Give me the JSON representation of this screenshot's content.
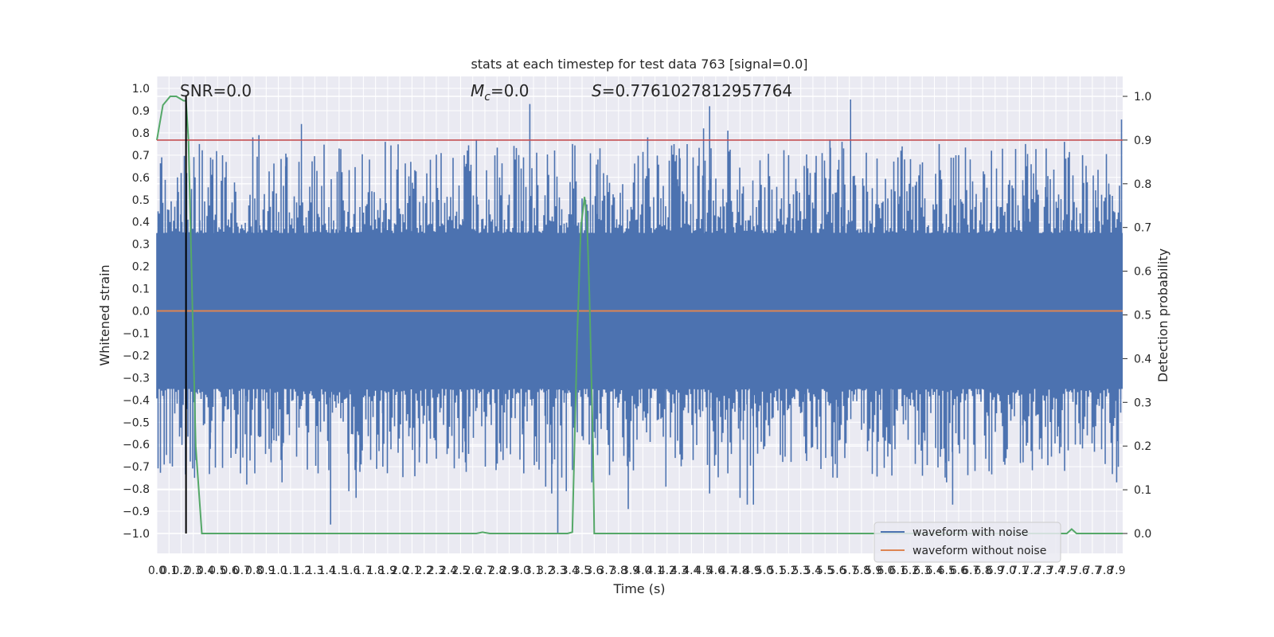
{
  "chart_data": {
    "type": "line",
    "title": "stats at each timestep for test data 763 [signal=0.0]",
    "xlabel": "Time (s)",
    "ylabel_left": "Whitened strain",
    "ylabel_right": "Detection probability",
    "xlim": [
      0.0,
      7.95
    ],
    "ylim_left": [
      -1.1,
      1.05
    ],
    "ylim_right": [
      -0.05,
      1.04
    ],
    "grid": true,
    "legend_position": "lower-right",
    "x_tick_step": 0.1,
    "x_ticks_last": 7.9,
    "left_y_ticks": [
      -1.0,
      -0.9,
      -0.8,
      -0.7,
      -0.6,
      -0.5,
      -0.4,
      -0.3,
      -0.2,
      -0.1,
      0.0,
      0.1,
      0.2,
      0.3,
      0.4,
      0.5,
      0.6,
      0.7,
      0.8,
      0.9,
      1.0
    ],
    "right_y_ticks": [
      0.0,
      0.1,
      0.2,
      0.3,
      0.4,
      0.5,
      0.6,
      0.7,
      0.8,
      0.9,
      1.0
    ],
    "annotations": {
      "snr": "SNR=0.0",
      "mc": "=0.0",
      "s": "=0.7761027812957764"
    },
    "threshold": 0.9,
    "marker_time": 0.24,
    "series": [
      {
        "name": "waveform with noise",
        "color": "#4c72b0",
        "axis": "left",
        "kind": "noise",
        "core_amplitude": 0.35,
        "spikes": [
          {
            "x": 0.04,
            "y": 0.69
          },
          {
            "x": 0.17,
            "y": 0.6
          },
          {
            "x": 0.2,
            "y": 0.62
          },
          {
            "x": 0.35,
            "y": 0.75
          },
          {
            "x": 0.46,
            "y": 0.68
          },
          {
            "x": 0.56,
            "y": 0.6
          },
          {
            "x": 0.79,
            "y": 0.78
          },
          {
            "x": 0.84,
            "y": 0.79
          },
          {
            "x": 1.06,
            "y": 0.65
          },
          {
            "x": 1.19,
            "y": 0.84
          },
          {
            "x": 1.5,
            "y": 0.73
          },
          {
            "x": 1.75,
            "y": 0.68
          },
          {
            "x": 1.88,
            "y": 0.76
          },
          {
            "x": 2.09,
            "y": 0.67
          },
          {
            "x": 2.53,
            "y": 0.7
          },
          {
            "x": 2.63,
            "y": 0.77
          },
          {
            "x": 2.95,
            "y": 0.68
          },
          {
            "x": 3.07,
            "y": 0.93
          },
          {
            "x": 3.43,
            "y": 0.55
          },
          {
            "x": 3.63,
            "y": 0.68
          },
          {
            "x": 4.04,
            "y": 0.78
          },
          {
            "x": 4.3,
            "y": 0.73
          },
          {
            "x": 4.5,
            "y": 0.82
          },
          {
            "x": 4.55,
            "y": 0.92
          },
          {
            "x": 4.7,
            "y": 0.81
          },
          {
            "x": 5.2,
            "y": 0.7
          },
          {
            "x": 5.54,
            "y": 0.77
          },
          {
            "x": 5.64,
            "y": 0.76
          },
          {
            "x": 5.71,
            "y": 0.95
          },
          {
            "x": 6.1,
            "y": 0.69
          },
          {
            "x": 6.6,
            "y": 0.7
          },
          {
            "x": 6.87,
            "y": 0.72
          },
          {
            "x": 7.15,
            "y": 0.75
          },
          {
            "x": 7.32,
            "y": 0.73
          },
          {
            "x": 7.47,
            "y": 0.76
          },
          {
            "x": 7.62,
            "y": 0.7
          },
          {
            "x": 7.94,
            "y": 0.86
          },
          {
            "x": 0.06,
            "y": -0.69
          },
          {
            "x": 0.31,
            "y": -0.75
          },
          {
            "x": 0.44,
            "y": -0.62
          },
          {
            "x": 0.61,
            "y": -0.66
          },
          {
            "x": 0.74,
            "y": -0.78
          },
          {
            "x": 0.94,
            "y": -0.68
          },
          {
            "x": 1.03,
            "y": -0.77
          },
          {
            "x": 1.43,
            "y": -0.96
          },
          {
            "x": 1.58,
            "y": -0.81
          },
          {
            "x": 1.64,
            "y": -0.84
          },
          {
            "x": 1.86,
            "y": -0.7
          },
          {
            "x": 2.16,
            "y": -0.68
          },
          {
            "x": 2.54,
            "y": -0.68
          },
          {
            "x": 2.85,
            "y": -0.67
          },
          {
            "x": 3.02,
            "y": -0.73
          },
          {
            "x": 3.2,
            "y": -0.79
          },
          {
            "x": 3.25,
            "y": -0.82
          },
          {
            "x": 3.3,
            "y": -1.0
          },
          {
            "x": 3.37,
            "y": -0.81
          },
          {
            "x": 3.58,
            "y": -0.77
          },
          {
            "x": 3.88,
            "y": -0.89
          },
          {
            "x": 4.19,
            "y": -0.79
          },
          {
            "x": 4.55,
            "y": -0.82
          },
          {
            "x": 4.7,
            "y": -0.73
          },
          {
            "x": 4.8,
            "y": -0.84
          },
          {
            "x": 4.86,
            "y": -0.87
          },
          {
            "x": 4.91,
            "y": -0.87
          },
          {
            "x": 5.34,
            "y": -0.64
          },
          {
            "x": 5.6,
            "y": -0.75
          },
          {
            "x": 6.05,
            "y": -0.74
          },
          {
            "x": 6.5,
            "y": -0.77
          },
          {
            "x": 6.55,
            "y": -0.87
          },
          {
            "x": 6.85,
            "y": -0.72
          },
          {
            "x": 7.13,
            "y": -0.68
          },
          {
            "x": 7.43,
            "y": -0.64
          },
          {
            "x": 7.6,
            "y": -0.6
          },
          {
            "x": 7.9,
            "y": -0.77
          }
        ]
      },
      {
        "name": "waveform without noise",
        "color": "#dd8452",
        "axis": "left",
        "x": [
          0.0,
          7.95
        ],
        "y": [
          0.0,
          0.0
        ]
      },
      {
        "color": "#55a868",
        "axis": "right",
        "x": [
          0.0,
          0.05,
          0.11,
          0.16,
          0.22,
          0.24,
          0.26,
          0.32,
          0.37,
          2.5,
          2.63,
          2.68,
          2.74,
          3.38,
          3.42,
          3.46,
          3.49,
          3.52,
          3.54,
          3.56,
          3.59,
          3.6,
          3.61,
          7.4,
          7.49,
          7.53,
          7.57,
          7.95
        ],
        "y": [
          0.9,
          0.98,
          1.0,
          1.0,
          0.99,
          0.99,
          0.9,
          0.2,
          0.0,
          0.0,
          0.0,
          0.003,
          0.0,
          0.0,
          0.003,
          0.45,
          0.7,
          0.77,
          0.72,
          0.55,
          0.2,
          0.0,
          0.0,
          0.0,
          0.0,
          0.01,
          0.0,
          0.0
        ]
      },
      {
        "color": "#c44e52",
        "axis": "right",
        "x": [
          0.0,
          7.95
        ],
        "y": [
          0.9,
          0.9
        ]
      }
    ]
  }
}
